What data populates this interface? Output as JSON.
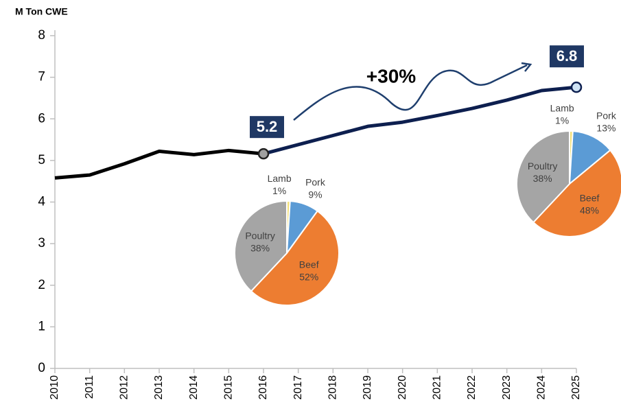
{
  "chart_data": [
    {
      "type": "line",
      "y_label": "M Ton CWE",
      "categories": [
        "2010",
        "2011",
        "2012",
        "2013",
        "2014",
        "2015",
        "2016",
        "2017",
        "2018",
        "2019",
        "2020",
        "2021",
        "2022",
        "2023",
        "2024",
        "2025"
      ],
      "series": [
        {
          "color": "#000000",
          "values": [
            4.58,
            4.65,
            4.92,
            5.22,
            5.14,
            5.24,
            5.16,
            null,
            null,
            null,
            null,
            null,
            null,
            null,
            null,
            null
          ]
        },
        {
          "color": "#0d1f4f",
          "values": [
            null,
            null,
            null,
            null,
            null,
            null,
            5.16,
            5.38,
            5.6,
            5.82,
            5.92,
            6.08,
            6.25,
            6.45,
            6.68,
            6.76
          ],
          "value_labels": [
            null,
            null,
            null,
            null,
            null,
            null,
            "5.2",
            null,
            null,
            null,
            null,
            null,
            null,
            null,
            null,
            "6.8"
          ]
        }
      ],
      "ylim": [
        0,
        8
      ],
      "yticks": [
        0,
        1,
        2,
        3,
        4,
        5,
        6,
        7,
        8
      ],
      "annotation": "+30%"
    },
    {
      "type": "pie",
      "categories": [
        "Lamb",
        "Pork",
        "Beef",
        "Poultry"
      ],
      "values": [
        1,
        9,
        52,
        38
      ],
      "value_labels": [
        "1%",
        "9%",
        "52%",
        "38%"
      ],
      "colors": [
        "#f3e07a",
        "#5b9bd5",
        "#ed7d31",
        "#a5a5a5"
      ]
    },
    {
      "type": "pie",
      "categories": [
        "Lamb",
        "Pork",
        "Beef",
        "Poultry"
      ],
      "values": [
        1,
        13,
        48,
        38
      ],
      "value_labels": [
        "1%",
        "13%",
        "48%",
        "38%"
      ],
      "colors": [
        "#f3e07a",
        "#5b9bd5",
        "#ed7d31",
        "#a5a5a5"
      ]
    }
  ]
}
